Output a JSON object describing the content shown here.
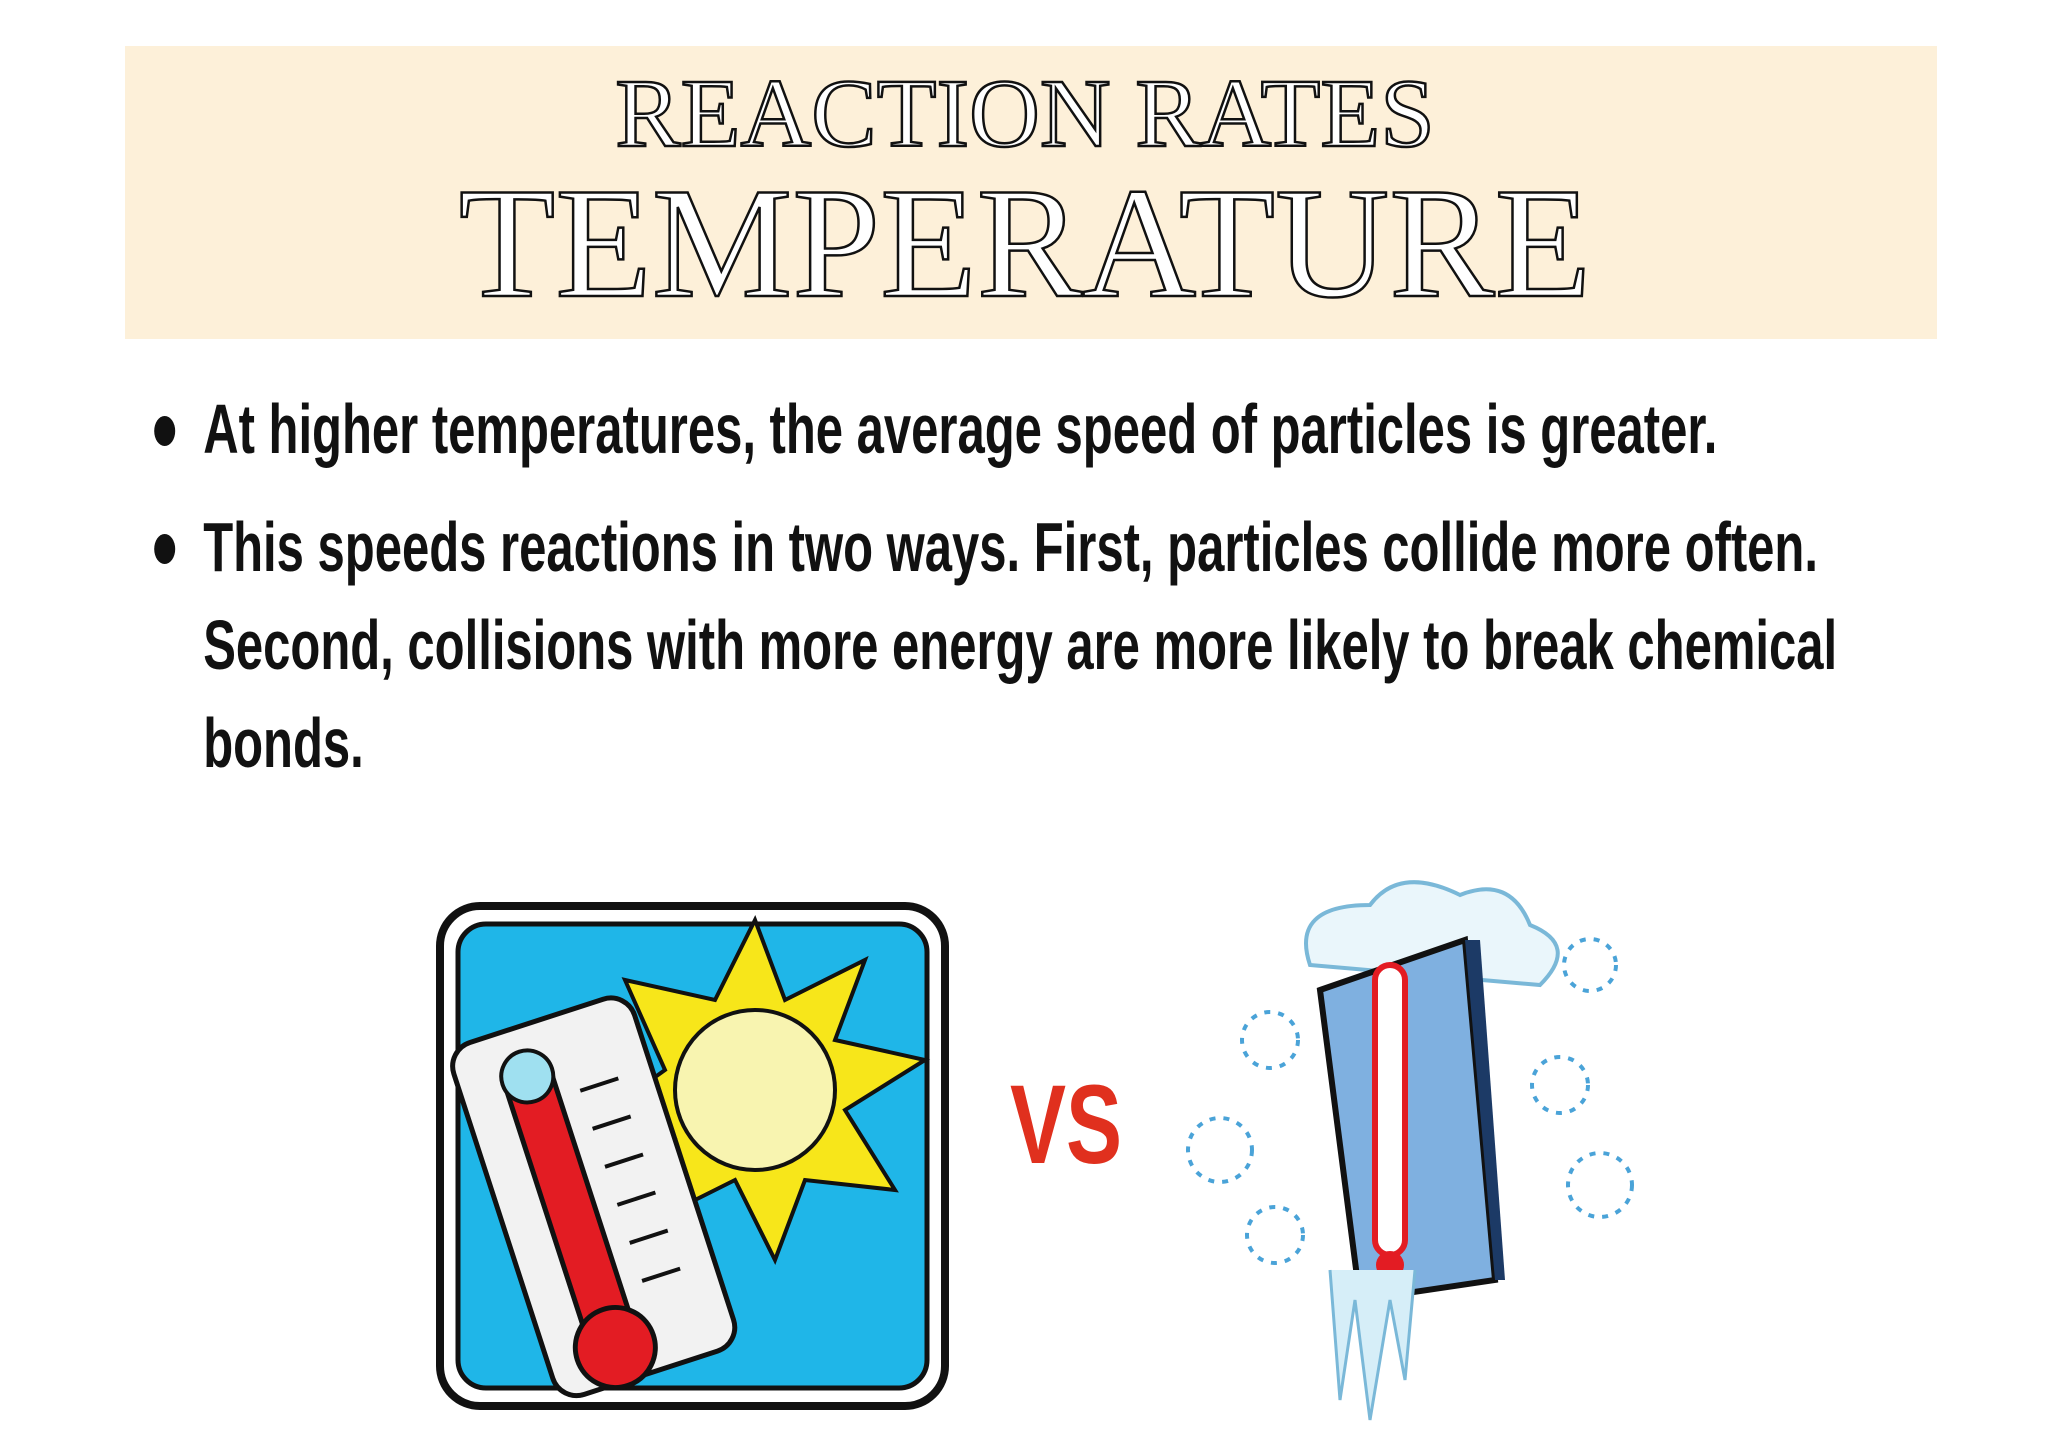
{
  "header": {
    "title": "REACTION RATES",
    "subtitle": "TEMPERATURE"
  },
  "bullets": [
    "At higher temperatures, the average speed of particles is greater.",
    "This speeds reactions in two ways. First, particles collide more often. Second, collisions with more energy are more likely to break chemical bonds."
  ],
  "comparison_label": "VS"
}
